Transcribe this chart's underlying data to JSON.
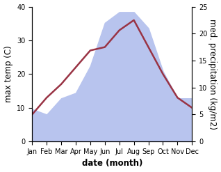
{
  "months": [
    "Jan",
    "Feb",
    "Mar",
    "Apr",
    "May",
    "Jun",
    "Jul",
    "Aug",
    "Sep",
    "Oct",
    "Nov",
    "Dec"
  ],
  "temperature": [
    8,
    13,
    17,
    22,
    27,
    28,
    33,
    36,
    28,
    20,
    13,
    10
  ],
  "precipitation": [
    6,
    5,
    8,
    9,
    14,
    22,
    24,
    24,
    21,
    13,
    8,
    8
  ],
  "temp_color": "#993344",
  "precip_color": "#b8c4ee",
  "temp_ylim": [
    0,
    40
  ],
  "precip_ylim": [
    0,
    25
  ],
  "xlabel": "date (month)",
  "ylabel_left": "max temp (C)",
  "ylabel_right": "med. precipitation (kg/m2)",
  "bg_color": "#ffffff",
  "tick_fontsize": 7,
  "label_fontsize": 8.5
}
